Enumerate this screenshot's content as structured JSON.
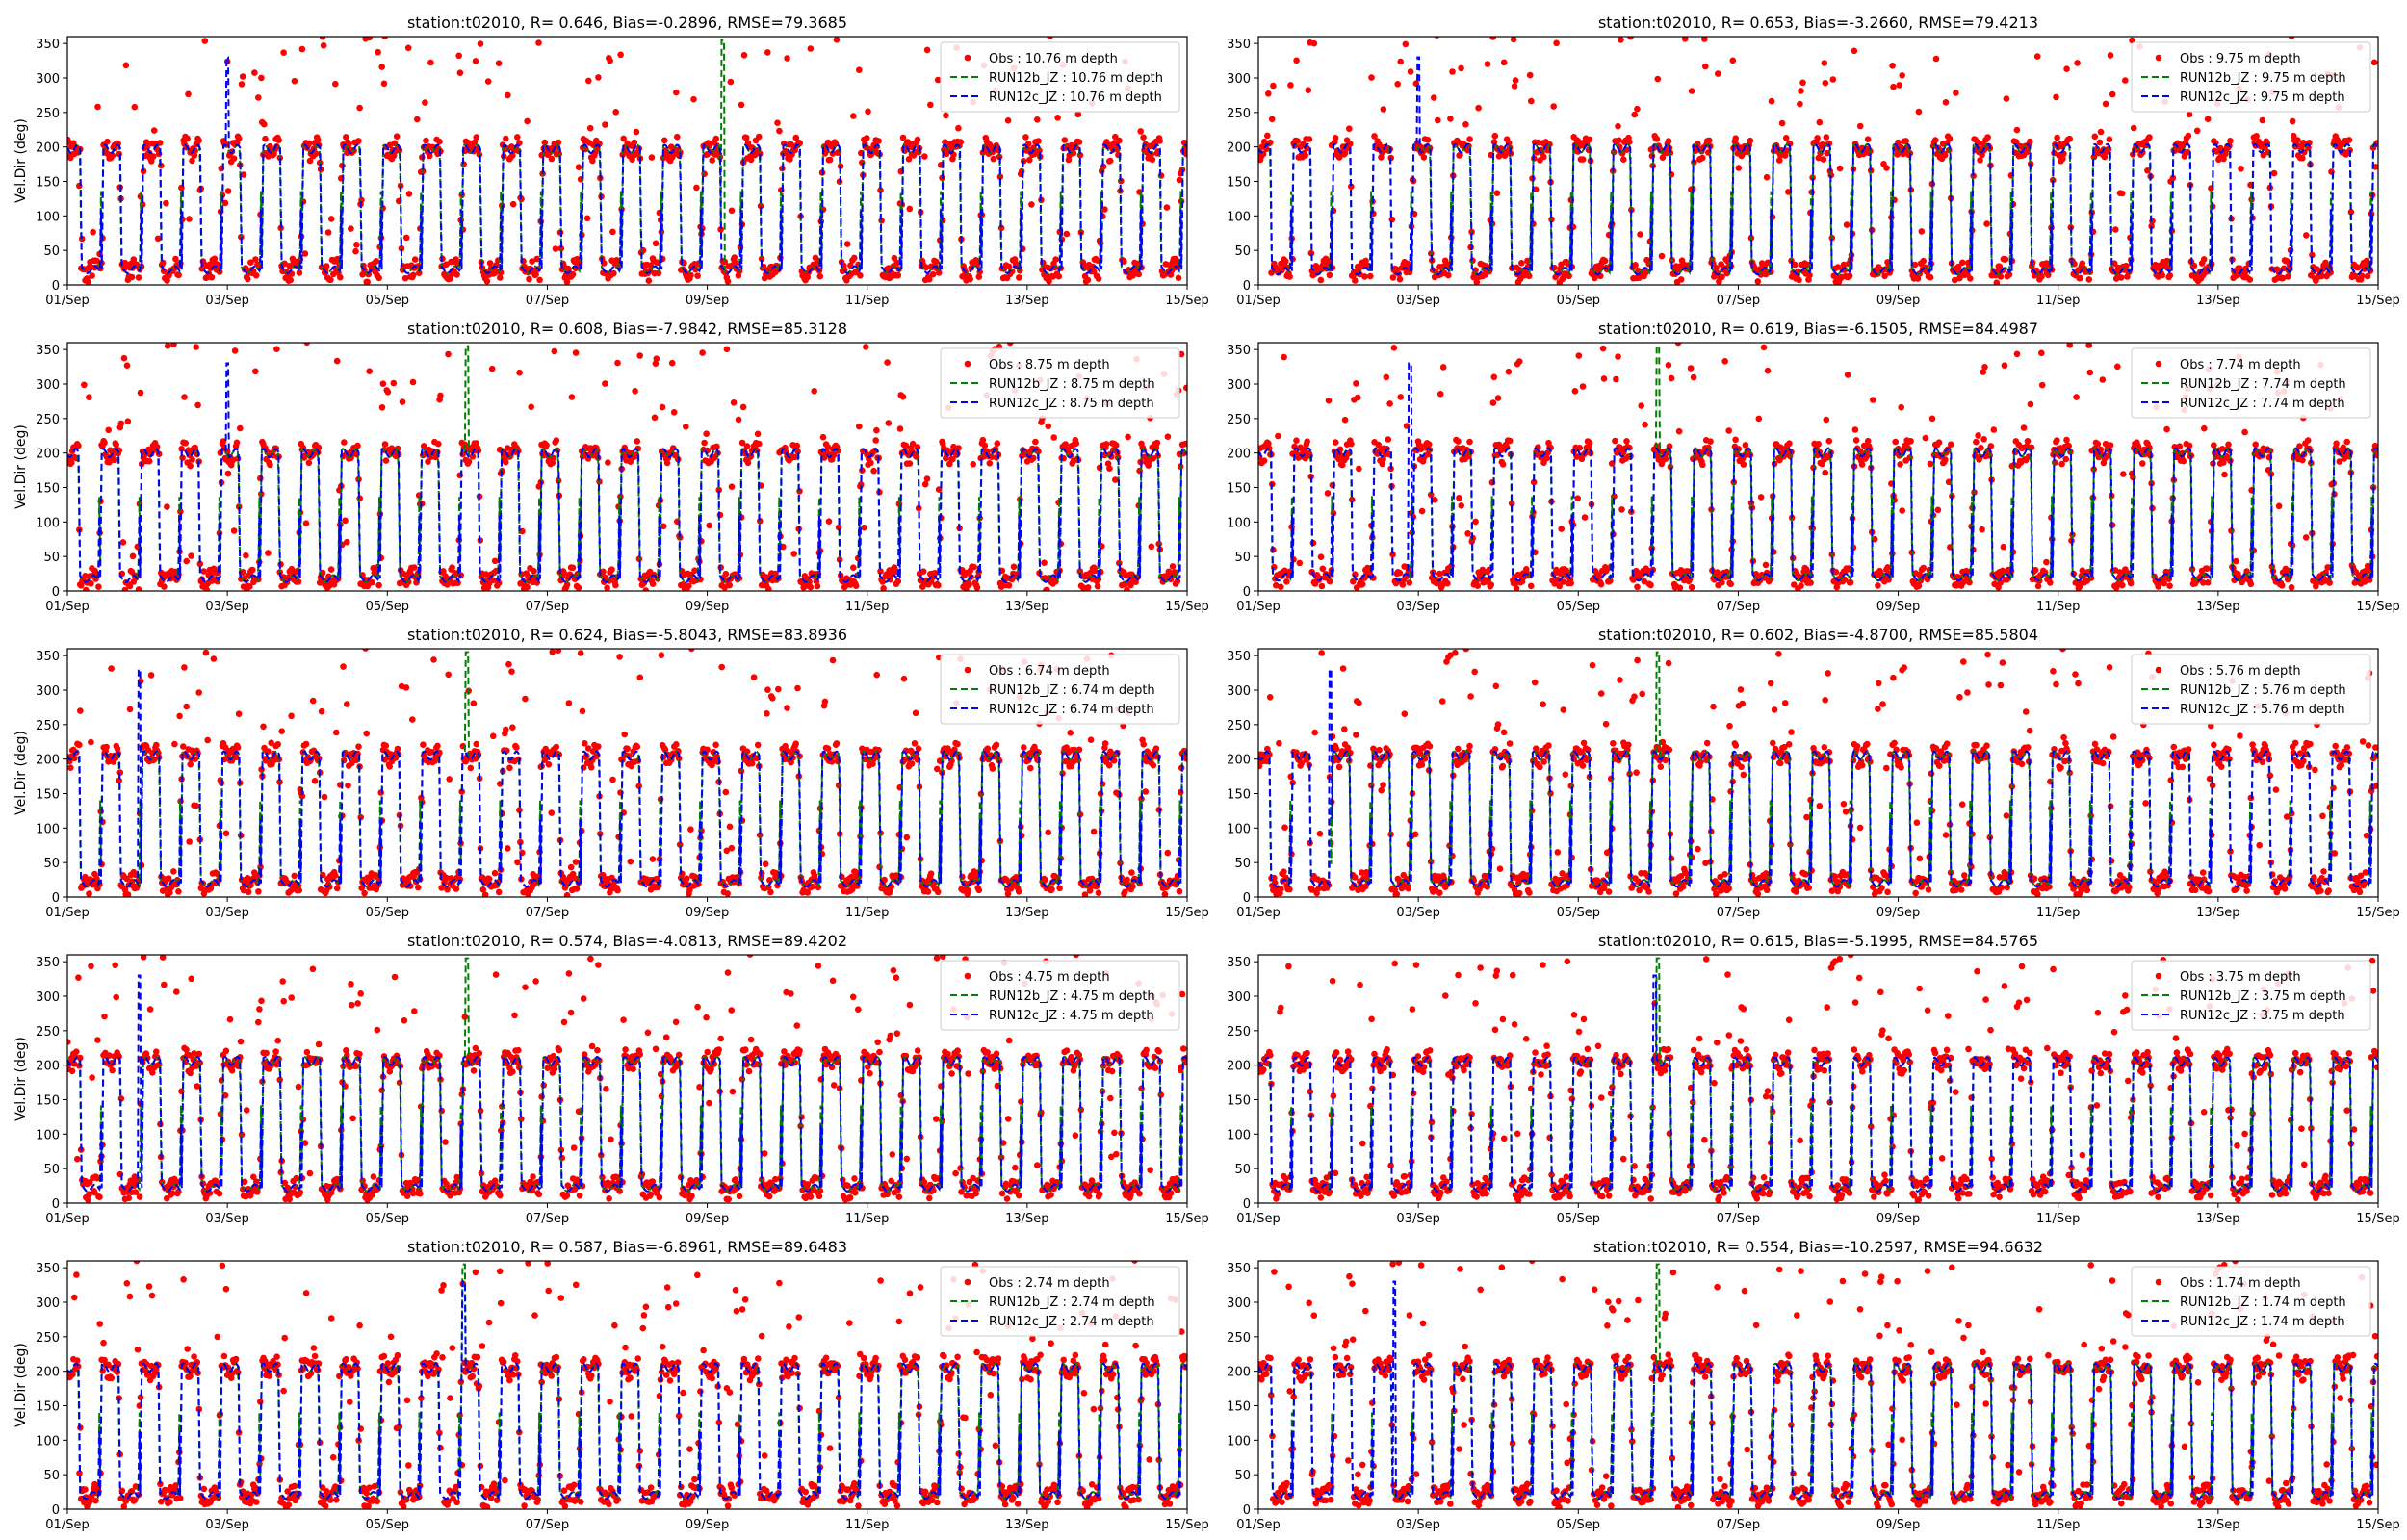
{
  "colors": {
    "obs": "#ff0000",
    "run12b": "#008000",
    "run12c": "#0000ff"
  },
  "chart_data": [
    {
      "type": "line",
      "title": "station:t02010, R= 0.646, Bias=-0.2896, RMSE=79.3685",
      "ylabel": "Vel.Dir (deg)",
      "xlabel": "",
      "xlim": [
        0,
        14
      ],
      "ylim": [
        0,
        360
      ],
      "yticks": [
        0,
        50,
        100,
        150,
        200,
        250,
        300,
        350
      ],
      "xticks": [
        "01/Sep",
        "03/Sep",
        "05/Sep",
        "07/Sep",
        "09/Sep",
        "11/Sep",
        "13/Sep",
        "15/Sep"
      ],
      "legend_position": "upper right",
      "series": [
        {
          "name": "Obs : 10.76 m depth",
          "style": "scatter",
          "low": 22,
          "high": 197
        },
        {
          "name": "RUN12b_JZ : 10.76 m depth",
          "style": "dashed",
          "low": 22,
          "high": 197
        },
        {
          "name": "RUN12c_JZ : 10.76 m depth",
          "style": "dashed",
          "low": 22,
          "high": 197
        }
      ]
    },
    {
      "type": "line",
      "title": "station:t02010, R= 0.653, Bias=-3.2660, RMSE=79.4213",
      "ylabel": "",
      "xlabel": "",
      "xlim": [
        0,
        14
      ],
      "ylim": [
        0,
        360
      ],
      "yticks": [
        0,
        50,
        100,
        150,
        200,
        250,
        300,
        350
      ],
      "xticks": [
        "01/Sep",
        "03/Sep",
        "05/Sep",
        "07/Sep",
        "09/Sep",
        "11/Sep",
        "13/Sep",
        "15/Sep"
      ],
      "legend_position": "upper right",
      "series": [
        {
          "name": "Obs : 9.75 m depth",
          "style": "scatter",
          "low": 20,
          "high": 198
        },
        {
          "name": "RUN12b_JZ : 9.75 m depth",
          "style": "dashed",
          "low": 20,
          "high": 198
        },
        {
          "name": "RUN12c_JZ : 9.75 m depth",
          "style": "dashed",
          "low": 20,
          "high": 198
        }
      ]
    },
    {
      "type": "line",
      "title": "station:t02010, R= 0.608, Bias=-7.9842, RMSE=85.3128",
      "ylabel": "Vel.Dir (deg)",
      "xlabel": "",
      "xlim": [
        0,
        14
      ],
      "ylim": [
        0,
        360
      ],
      "yticks": [
        0,
        50,
        100,
        150,
        200,
        250,
        300,
        350
      ],
      "xticks": [
        "01/Sep",
        "03/Sep",
        "05/Sep",
        "07/Sep",
        "09/Sep",
        "11/Sep",
        "13/Sep",
        "15/Sep"
      ],
      "legend_position": "upper right",
      "series": [
        {
          "name": "Obs : 8.75 m depth",
          "style": "scatter",
          "low": 18,
          "high": 200
        },
        {
          "name": "RUN12b_JZ : 8.75 m depth",
          "style": "dashed",
          "low": 18,
          "high": 200
        },
        {
          "name": "RUN12c_JZ : 8.75 m depth",
          "style": "dashed",
          "low": 18,
          "high": 200
        }
      ]
    },
    {
      "type": "line",
      "title": "station:t02010, R= 0.619, Bias=-6.1505, RMSE=84.4987",
      "ylabel": "",
      "xlabel": "",
      "xlim": [
        0,
        14
      ],
      "ylim": [
        0,
        360
      ],
      "yticks": [
        0,
        50,
        100,
        150,
        200,
        250,
        300,
        350
      ],
      "xticks": [
        "01/Sep",
        "03/Sep",
        "05/Sep",
        "07/Sep",
        "09/Sep",
        "11/Sep",
        "13/Sep",
        "15/Sep"
      ],
      "legend_position": "upper right",
      "series": [
        {
          "name": "Obs : 7.74 m depth",
          "style": "scatter",
          "low": 20,
          "high": 201
        },
        {
          "name": "RUN12b_JZ : 7.74 m depth",
          "style": "dashed",
          "low": 20,
          "high": 201
        },
        {
          "name": "RUN12c_JZ : 7.74 m depth",
          "style": "dashed",
          "low": 20,
          "high": 201
        }
      ]
    },
    {
      "type": "line",
      "title": "station:t02010, R= 0.624, Bias=-5.8043, RMSE=83.8936",
      "ylabel": "Vel.Dir (deg)",
      "xlabel": "",
      "xlim": [
        0,
        14
      ],
      "ylim": [
        0,
        360
      ],
      "yticks": [
        0,
        50,
        100,
        150,
        200,
        250,
        300,
        350
      ],
      "xticks": [
        "01/Sep",
        "03/Sep",
        "05/Sep",
        "07/Sep",
        "09/Sep",
        "11/Sep",
        "13/Sep",
        "15/Sep"
      ],
      "legend_position": "upper right",
      "series": [
        {
          "name": "Obs : 6.74 m depth",
          "style": "scatter",
          "low": 20,
          "high": 205
        },
        {
          "name": "RUN12b_JZ : 6.74 m depth",
          "style": "dashed",
          "low": 20,
          "high": 205
        },
        {
          "name": "RUN12c_JZ : 6.74 m depth",
          "style": "dashed",
          "low": 20,
          "high": 205
        }
      ]
    },
    {
      "type": "line",
      "title": "station:t02010, R= 0.602, Bias=-4.8700, RMSE=85.5804",
      "ylabel": "",
      "xlabel": "",
      "xlim": [
        0,
        14
      ],
      "ylim": [
        0,
        360
      ],
      "yticks": [
        0,
        50,
        100,
        150,
        200,
        250,
        300,
        350
      ],
      "xticks": [
        "01/Sep",
        "03/Sep",
        "05/Sep",
        "07/Sep",
        "09/Sep",
        "11/Sep",
        "13/Sep",
        "15/Sep"
      ],
      "legend_position": "upper right",
      "series": [
        {
          "name": "Obs : 5.76 m depth",
          "style": "scatter",
          "low": 20,
          "high": 205
        },
        {
          "name": "RUN12b_JZ : 5.76 m depth",
          "style": "dashed",
          "low": 20,
          "high": 205
        },
        {
          "name": "RUN12c_JZ : 5.76 m depth",
          "style": "dashed",
          "low": 20,
          "high": 205
        }
      ]
    },
    {
      "type": "line",
      "title": "station:t02010, R= 0.574, Bias=-4.0813, RMSE=89.4202",
      "ylabel": "Vel.Dir (deg)",
      "xlabel": "",
      "xlim": [
        0,
        14
      ],
      "ylim": [
        0,
        360
      ],
      "yticks": [
        0,
        50,
        100,
        150,
        200,
        250,
        300,
        350
      ],
      "xticks": [
        "01/Sep",
        "03/Sep",
        "05/Sep",
        "07/Sep",
        "09/Sep",
        "11/Sep",
        "13/Sep",
        "15/Sep"
      ],
      "legend_position": "upper right",
      "series": [
        {
          "name": "Obs : 4.75 m depth",
          "style": "scatter",
          "low": 22,
          "high": 206
        },
        {
          "name": "RUN12b_JZ : 4.75 m depth",
          "style": "dashed",
          "low": 22,
          "high": 206
        },
        {
          "name": "RUN12c_JZ : 4.75 m depth",
          "style": "dashed",
          "low": 22,
          "high": 206
        }
      ]
    },
    {
      "type": "line",
      "title": "station:t02010, R= 0.615, Bias=-5.1995, RMSE=84.5765",
      "ylabel": "",
      "xlabel": "",
      "xlim": [
        0,
        14
      ],
      "ylim": [
        0,
        360
      ],
      "yticks": [
        0,
        50,
        100,
        150,
        200,
        250,
        300,
        350
      ],
      "xticks": [
        "01/Sep",
        "03/Sep",
        "05/Sep",
        "07/Sep",
        "09/Sep",
        "11/Sep",
        "13/Sep",
        "15/Sep"
      ],
      "legend_position": "upper right",
      "series": [
        {
          "name": "Obs : 3.75 m depth",
          "style": "scatter",
          "low": 22,
          "high": 205
        },
        {
          "name": "RUN12b_JZ : 3.75 m depth",
          "style": "dashed",
          "low": 22,
          "high": 205
        },
        {
          "name": "RUN12c_JZ : 3.75 m depth",
          "style": "dashed",
          "low": 22,
          "high": 205
        }
      ]
    },
    {
      "type": "line",
      "title": "station:t02010, R= 0.587, Bias=-6.8961, RMSE=89.6483",
      "ylabel": "Vel.Dir (deg)",
      "xlabel": "",
      "xlim": [
        0,
        14
      ],
      "ylim": [
        0,
        360
      ],
      "yticks": [
        0,
        50,
        100,
        150,
        200,
        250,
        300,
        350
      ],
      "xticks": [
        "01/Sep",
        "03/Sep",
        "05/Sep",
        "07/Sep",
        "09/Sep",
        "11/Sep",
        "13/Sep",
        "15/Sep"
      ],
      "legend_position": "upper right",
      "series": [
        {
          "name": "Obs : 2.74 m depth",
          "style": "scatter",
          "low": 20,
          "high": 205
        },
        {
          "name": "RUN12b_JZ : 2.74 m depth",
          "style": "dashed",
          "low": 20,
          "high": 205
        },
        {
          "name": "RUN12c_JZ : 2.74 m depth",
          "style": "dashed",
          "low": 20,
          "high": 205
        }
      ]
    },
    {
      "type": "line",
      "title": "station:t02010, R= 0.554, Bias=-10.2597, RMSE=94.6632",
      "ylabel": "",
      "xlabel": "",
      "xlim": [
        0,
        14
      ],
      "ylim": [
        0,
        360
      ],
      "yticks": [
        0,
        50,
        100,
        150,
        200,
        250,
        300,
        350
      ],
      "xticks": [
        "01/Sep",
        "03/Sep",
        "05/Sep",
        "07/Sep",
        "09/Sep",
        "11/Sep",
        "13/Sep",
        "15/Sep"
      ],
      "legend_position": "upper right",
      "series": [
        {
          "name": "Obs : 1.74 m depth",
          "style": "scatter",
          "low": 20,
          "high": 205
        },
        {
          "name": "RUN12b_JZ : 1.74 m depth",
          "style": "dashed",
          "low": 20,
          "high": 205
        },
        {
          "name": "RUN12c_JZ : 1.74 m depth",
          "style": "dashed",
          "low": 20,
          "high": 205
        }
      ]
    }
  ]
}
